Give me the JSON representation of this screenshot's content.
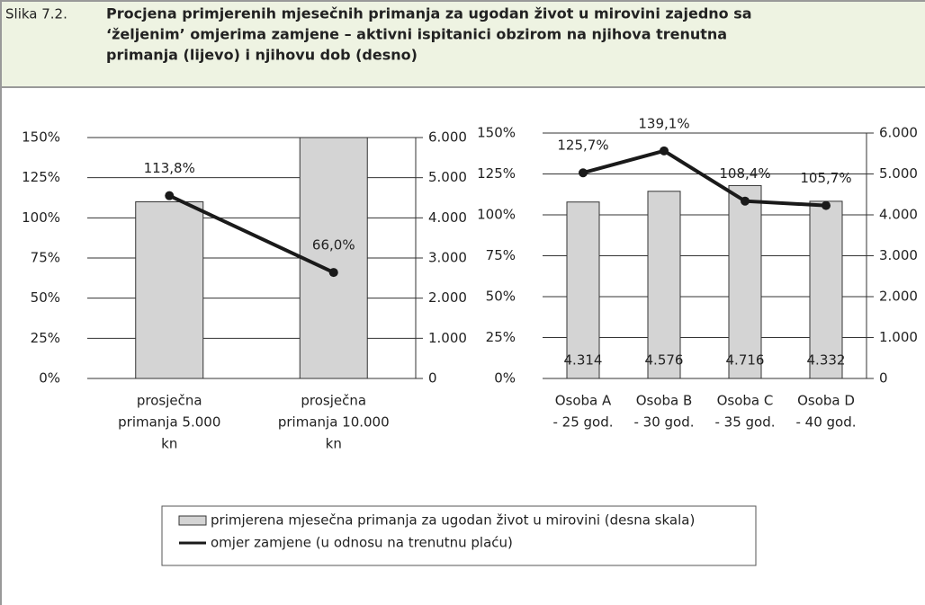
{
  "figure_label": "Slika 7.2.",
  "title": [
    "Procjena primjerenih mjesečnih primanja za ugodan život u mirovini zajedno sa",
    "‘željenim’ omjerima zamjene – aktivni ispitanici obzirom na njihova trenutna",
    "primanja (lijevo) i njihovu dob (desno)"
  ],
  "chart_data": [
    {
      "type": "combo",
      "categories": [
        [
          "prosječna",
          "primanja 5.000",
          "kn"
        ],
        [
          "prosječna",
          "primanja  10.000",
          "kn"
        ]
      ],
      "series": [
        {
          "name": "primjerena mjesečna primanja za ugodan život u mirovini (desna skala)",
          "type": "bar",
          "axis": "y2",
          "color": "#d4d4d4",
          "values": [
            4400,
            6000
          ]
        },
        {
          "name": "omjer zamjene (u odnosu na trenutnu plaću)",
          "type": "line",
          "axis": "y",
          "color": "#1a1a1a",
          "values": [
            113.8,
            66.0
          ],
          "value_labels": [
            "113,8%",
            "66,0%"
          ]
        }
      ],
      "ylim": [
        0,
        150
      ],
      "yticks": [
        {
          "value": 0,
          "label": "0%"
        },
        {
          "value": 25,
          "label": "25%"
        },
        {
          "value": 50,
          "label": "50%"
        },
        {
          "value": 75,
          "label": "75%"
        },
        {
          "value": 100,
          "label": "100%"
        },
        {
          "value": 125,
          "label": "125%"
        },
        {
          "value": 150,
          "label": "150%"
        }
      ],
      "y2lim": [
        0,
        6000
      ],
      "y2ticks": [
        0,
        {
          "value": 1000,
          "label": "1.000"
        },
        {
          "value": 2000,
          "label": "2.000"
        },
        {
          "value": 3000,
          "label": "3.000"
        },
        {
          "value": 4000,
          "label": "4.000"
        },
        {
          "value": 5000,
          "label": "5.000"
        },
        {
          "value": 6000,
          "label": "6.000"
        }
      ],
      "grid": true
    },
    {
      "type": "combo",
      "categories": [
        [
          "Osoba A",
          "- 25 god."
        ],
        [
          "Osoba B",
          "- 30 god."
        ],
        [
          "Osoba C",
          "- 35 god."
        ],
        [
          "Osoba D",
          "- 40 god."
        ]
      ],
      "series": [
        {
          "type": "bar",
          "axis": "y2",
          "color": "#d4d4d4",
          "values": [
            4314,
            4576,
            4716,
            4332
          ],
          "value_labels": [
            "4.314",
            "4.576",
            "4.716",
            "4.332"
          ]
        },
        {
          "type": "line",
          "axis": "y",
          "color": "#1a1a1a",
          "values": [
            125.7,
            139.1,
            108.4,
            105.7
          ],
          "value_labels": [
            "125,7%",
            "139,1%",
            "108,4%",
            "105,7%"
          ]
        }
      ],
      "ylim": [
        0,
        150
      ],
      "yticks": [
        {
          "value": 0,
          "label": "0%"
        },
        {
          "value": 25,
          "label": "25%"
        },
        {
          "value": 50,
          "label": "50%"
        },
        {
          "value": 75,
          "label": "75%"
        },
        {
          "value": 100,
          "label": "100%"
        },
        {
          "value": 125,
          "label": "125%"
        },
        {
          "value": 150,
          "label": "150%"
        }
      ],
      "y2lim": [
        0,
        6000
      ],
      "y2ticks": [
        0,
        {
          "value": 1000,
          "label": "1.000"
        },
        {
          "value": 2000,
          "label": "2.000"
        },
        {
          "value": 3000,
          "label": "3.000"
        },
        {
          "value": 4000,
          "label": "4.000"
        },
        {
          "value": 5000,
          "label": "5.000"
        },
        {
          "value": 6000,
          "label": "6.000"
        }
      ],
      "grid": true
    }
  ]
}
